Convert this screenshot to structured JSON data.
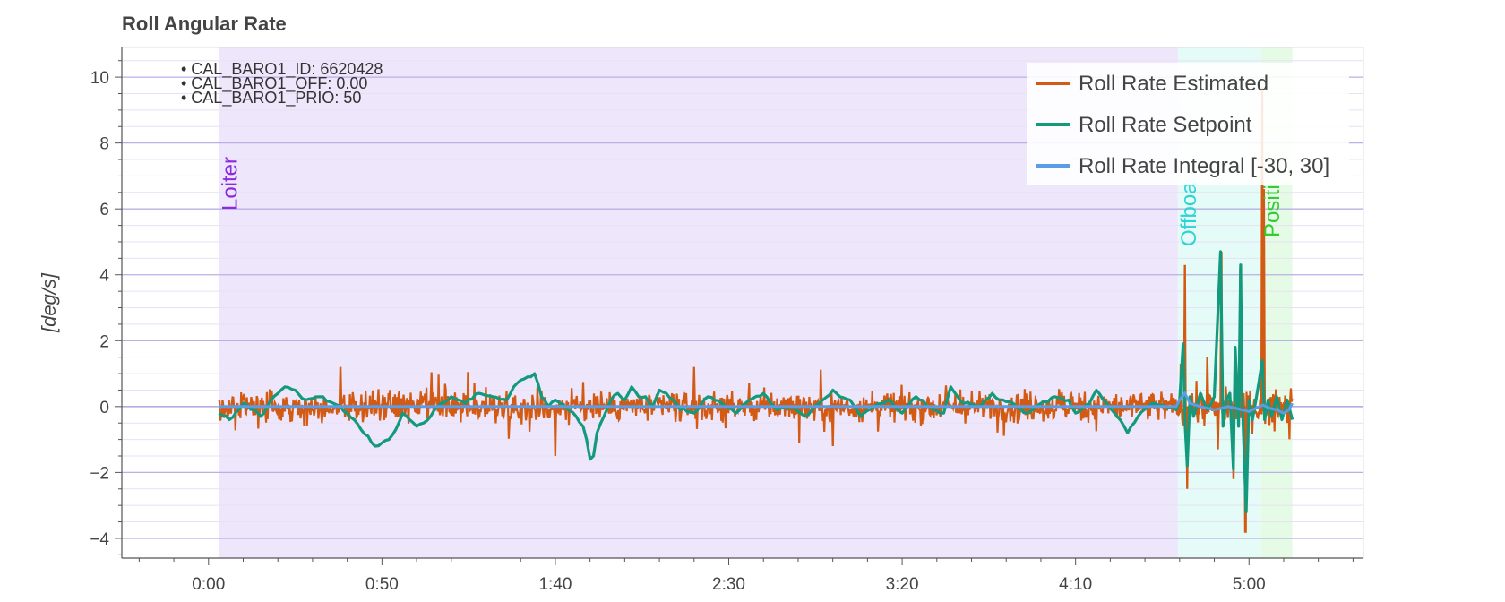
{
  "chart_data": {
    "type": "line",
    "title": "Roll Angular Rate",
    "ylabel": "[deg/s]",
    "xlim": [
      -25,
      333
    ],
    "ylim": [
      -4.6,
      10.9
    ],
    "x_ticks": [
      {
        "value": 0,
        "label": "0:00"
      },
      {
        "value": 50,
        "label": "0:50"
      },
      {
        "value": 100,
        "label": "1:40"
      },
      {
        "value": 150,
        "label": "2:30"
      },
      {
        "value": 200,
        "label": "3:20"
      },
      {
        "value": 250,
        "label": "4:10"
      },
      {
        "value": 300,
        "label": "5:00"
      }
    ],
    "y_ticks": [
      {
        "value": -4,
        "label": "−4"
      },
      {
        "value": -2,
        "label": "−2"
      },
      {
        "value": 0,
        "label": "0"
      },
      {
        "value": 2,
        "label": "2"
      },
      {
        "value": 4,
        "label": "4"
      },
      {
        "value": 6,
        "label": "6"
      },
      {
        "value": 8,
        "label": "8"
      },
      {
        "value": 10,
        "label": "10"
      }
    ],
    "grid": true,
    "legend_position": "top-right",
    "flight_modes": [
      {
        "name": "Loiter",
        "start": 3,
        "end": 279.5,
        "fill": "#eee6fb",
        "text_color": "#8a2be2"
      },
      {
        "name": "Offboa",
        "start": 279.5,
        "end": 303.5,
        "fill": "#e4fbf7",
        "text_color": "#2dd4d4"
      },
      {
        "name": "Positi",
        "start": 303.5,
        "end": 312.5,
        "fill": "#e6fbe6",
        "text_color": "#33cc33"
      }
    ],
    "parameter_notes": [
      "• CAL_BARO1_ID: 6620428",
      "• CAL_BARO1_OFF: 0.00",
      "• CAL_BARO1_PRIO: 50"
    ],
    "series": [
      {
        "name": "Roll Rate Estimated",
        "color": "#d35a12",
        "style": "noisy-bar",
        "x_range": [
          3,
          312.5
        ],
        "noise_amplitude": 0.45,
        "spikes": [
          {
            "x": 281.5,
            "y": 4.3
          },
          {
            "x": 282.2,
            "y": -2.5
          },
          {
            "x": 292.0,
            "y": 4.7
          },
          {
            "x": 295.5,
            "y": -2.2
          },
          {
            "x": 297.5,
            "y": 4.2
          },
          {
            "x": 299.0,
            "y": -3.8
          },
          {
            "x": 303.8,
            "y": 9.7
          },
          {
            "x": 304.3,
            "y": 6.6
          },
          {
            "x": 291.0,
            "y": -1.3
          },
          {
            "x": 288.0,
            "y": 1.5
          },
          {
            "x": 140.0,
            "y": 1.2
          },
          {
            "x": 180.0,
            "y": -1.2
          },
          {
            "x": 100.0,
            "y": -1.5
          },
          {
            "x": 38.0,
            "y": 1.2
          }
        ]
      },
      {
        "name": "Roll Rate Setpoint",
        "color": "#139a7d",
        "style": "line",
        "points": [
          [
            3,
            -0.2
          ],
          [
            6,
            -0.4
          ],
          [
            10,
            0.1
          ],
          [
            15,
            -0.3
          ],
          [
            18,
            0.2
          ],
          [
            22,
            0.6
          ],
          [
            25,
            0.5
          ],
          [
            28,
            0.2
          ],
          [
            32,
            0.3
          ],
          [
            36,
            0.1
          ],
          [
            40,
            -0.2
          ],
          [
            42,
            -0.4
          ],
          [
            44,
            -0.7
          ],
          [
            46,
            -0.9
          ],
          [
            48,
            -1.2
          ],
          [
            50,
            -1.1
          ],
          [
            52,
            -1.0
          ],
          [
            54,
            -0.7
          ],
          [
            56,
            -0.2
          ],
          [
            58,
            -0.4
          ],
          [
            60,
            -0.6
          ],
          [
            62,
            -0.5
          ],
          [
            64,
            -0.3
          ],
          [
            66,
            0.0
          ],
          [
            70,
            0.3
          ],
          [
            74,
            0.1
          ],
          [
            78,
            0.4
          ],
          [
            82,
            0.3
          ],
          [
            86,
            0.2
          ],
          [
            88,
            0.6
          ],
          [
            90,
            0.8
          ],
          [
            92,
            0.9
          ],
          [
            94,
            1.0
          ],
          [
            95,
            0.7
          ],
          [
            96,
            0.3
          ],
          [
            98,
            0.0
          ],
          [
            100,
            0.2
          ],
          [
            103,
            0.0
          ],
          [
            106,
            -0.3
          ],
          [
            108,
            -0.6
          ],
          [
            109,
            -1.0
          ],
          [
            110,
            -1.6
          ],
          [
            111,
            -1.5
          ],
          [
            112,
            -0.8
          ],
          [
            114,
            -0.3
          ],
          [
            116,
            0.2
          ],
          [
            118,
            0.4
          ],
          [
            120,
            0.2
          ],
          [
            122,
            0.6
          ],
          [
            124,
            0.3
          ],
          [
            126,
            0.3
          ],
          [
            128,
            0.0
          ],
          [
            130,
            0.5
          ],
          [
            132,
            0.4
          ],
          [
            134,
            0.2
          ],
          [
            136,
            -0.1
          ],
          [
            140,
            -0.2
          ],
          [
            144,
            0.3
          ],
          [
            148,
            0.1
          ],
          [
            152,
            -0.2
          ],
          [
            156,
            0.2
          ],
          [
            160,
            0.4
          ],
          [
            164,
            -0.1
          ],
          [
            168,
            0.0
          ],
          [
            172,
            -0.3
          ],
          [
            176,
            0.1
          ],
          [
            180,
            0.5
          ],
          [
            182,
            0.3
          ],
          [
            185,
            0.2
          ],
          [
            188,
            -0.3
          ],
          [
            192,
            0.0
          ],
          [
            196,
            0.2
          ],
          [
            200,
            -0.2
          ],
          [
            204,
            0.3
          ],
          [
            208,
            0.0
          ],
          [
            212,
            -0.2
          ],
          [
            214,
            0.6
          ],
          [
            216,
            0.3
          ],
          [
            218,
            0.1
          ],
          [
            222,
            0.0
          ],
          [
            226,
            0.4
          ],
          [
            228,
            0.2
          ],
          [
            232,
            0.1
          ],
          [
            236,
            -0.2
          ],
          [
            240,
            0.1
          ],
          [
            244,
            0.3
          ],
          [
            248,
            0.2
          ],
          [
            250,
            -0.2
          ],
          [
            254,
            0.1
          ],
          [
            256,
            0.5
          ],
          [
            258,
            0.2
          ],
          [
            262,
            -0.3
          ],
          [
            264,
            -0.6
          ],
          [
            265,
            -0.8
          ],
          [
            268,
            -0.3
          ],
          [
            272,
            0.1
          ],
          [
            276,
            0.0
          ],
          [
            279,
            -0.1
          ],
          [
            280,
            0.2
          ],
          [
            281,
            1.9
          ],
          [
            281.6,
            -0.6
          ],
          [
            282.2,
            -1.8
          ],
          [
            283,
            0.3
          ],
          [
            284,
            -0.3
          ],
          [
            286,
            0.4
          ],
          [
            288,
            -0.1
          ],
          [
            290,
            0.3
          ],
          [
            291.8,
            4.7
          ],
          [
            292.5,
            -0.6
          ],
          [
            293.5,
            0.2
          ],
          [
            294.5,
            0.4
          ],
          [
            295.5,
            -1.9
          ],
          [
            296,
            1.8
          ],
          [
            297,
            -0.6
          ],
          [
            297.6,
            4.3
          ],
          [
            298,
            0.3
          ],
          [
            299.2,
            -3.2
          ],
          [
            300,
            0.2
          ],
          [
            301,
            -0.4
          ],
          [
            302,
            0.2
          ],
          [
            303.8,
            1.4
          ],
          [
            304.5,
            -0.4
          ],
          [
            305.5,
            0.2
          ],
          [
            306.5,
            -0.3
          ],
          [
            308,
            0.3
          ],
          [
            309.5,
            -0.4
          ],
          [
            311,
            0.2
          ],
          [
            312.5,
            -0.4
          ]
        ]
      },
      {
        "name": "Roll Rate Integral [-30, 30]",
        "color": "#5c9ce6",
        "style": "line",
        "points": [
          [
            3,
            0.0
          ],
          [
            50,
            0.0
          ],
          [
            100,
            0.0
          ],
          [
            150,
            0.0
          ],
          [
            200,
            0.0
          ],
          [
            250,
            0.0
          ],
          [
            279,
            0.0
          ],
          [
            280,
            0.2
          ],
          [
            281.5,
            0.4
          ],
          [
            283,
            0.1
          ],
          [
            286,
            0.0
          ],
          [
            290,
            -0.1
          ],
          [
            294,
            0.0
          ],
          [
            298,
            -0.1
          ],
          [
            300,
            -0.15
          ],
          [
            302,
            -0.05
          ],
          [
            304,
            0.05
          ],
          [
            306,
            -0.05
          ],
          [
            308,
            -0.1
          ],
          [
            310,
            -0.2
          ],
          [
            311.5,
            -0.1
          ],
          [
            312.5,
            0.1
          ]
        ]
      }
    ]
  }
}
